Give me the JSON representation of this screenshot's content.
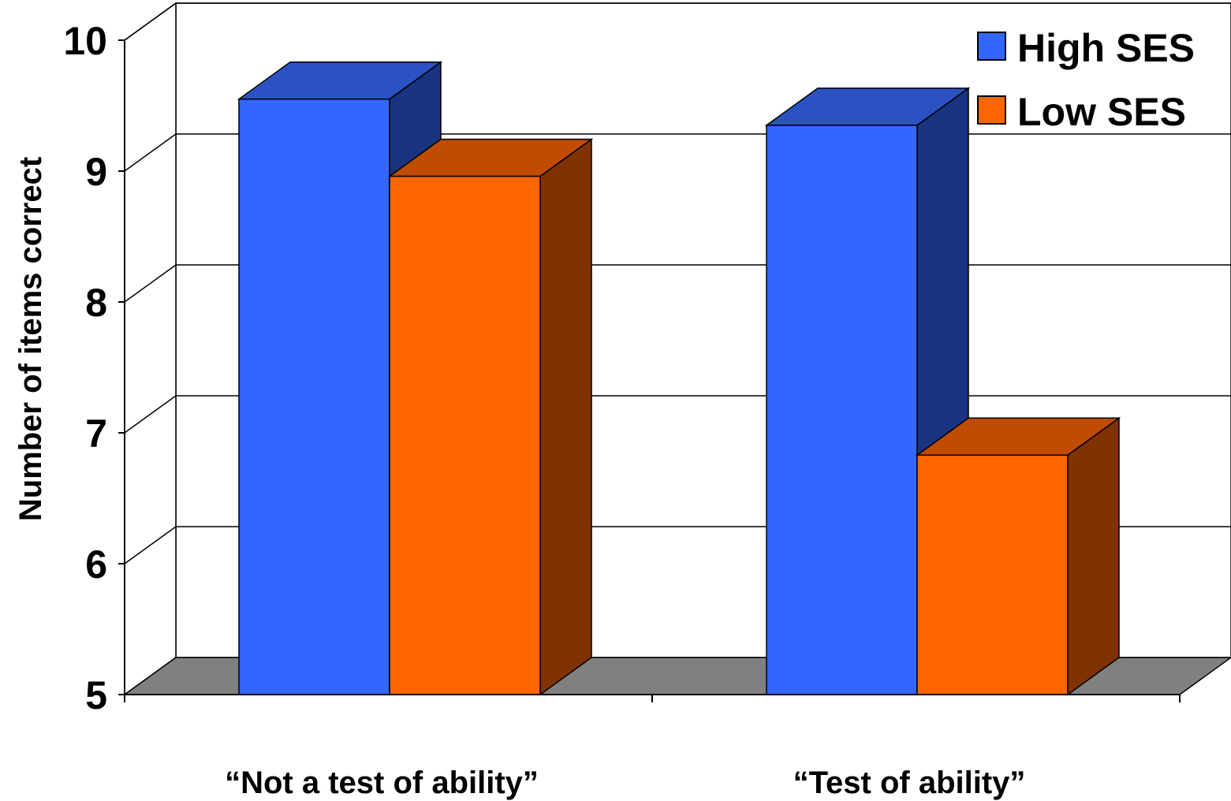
{
  "chart_data": {
    "type": "bar",
    "style": "3d-clustered",
    "categories": [
      "“Not a test of ability”",
      "“Test of ability”"
    ],
    "series": [
      {
        "name": "High SES",
        "values": [
          9.55,
          9.35
        ],
        "color": "#3366ff",
        "top_color": "#2a52c2",
        "side_color": "#1a3380"
      },
      {
        "name": "Low SES",
        "values": [
          8.96,
          6.83
        ],
        "color": "#ff6600",
        "top_color": "#bf4c00",
        "side_color": "#803300"
      }
    ],
    "ylabel": "Number of items correct",
    "xlabel": "",
    "ylim": [
      5,
      10
    ],
    "yticks": [
      "5",
      "6",
      "7",
      "8",
      "9",
      "10"
    ],
    "grid": true,
    "legend_position": "top-right",
    "floor_color": "#808080"
  }
}
